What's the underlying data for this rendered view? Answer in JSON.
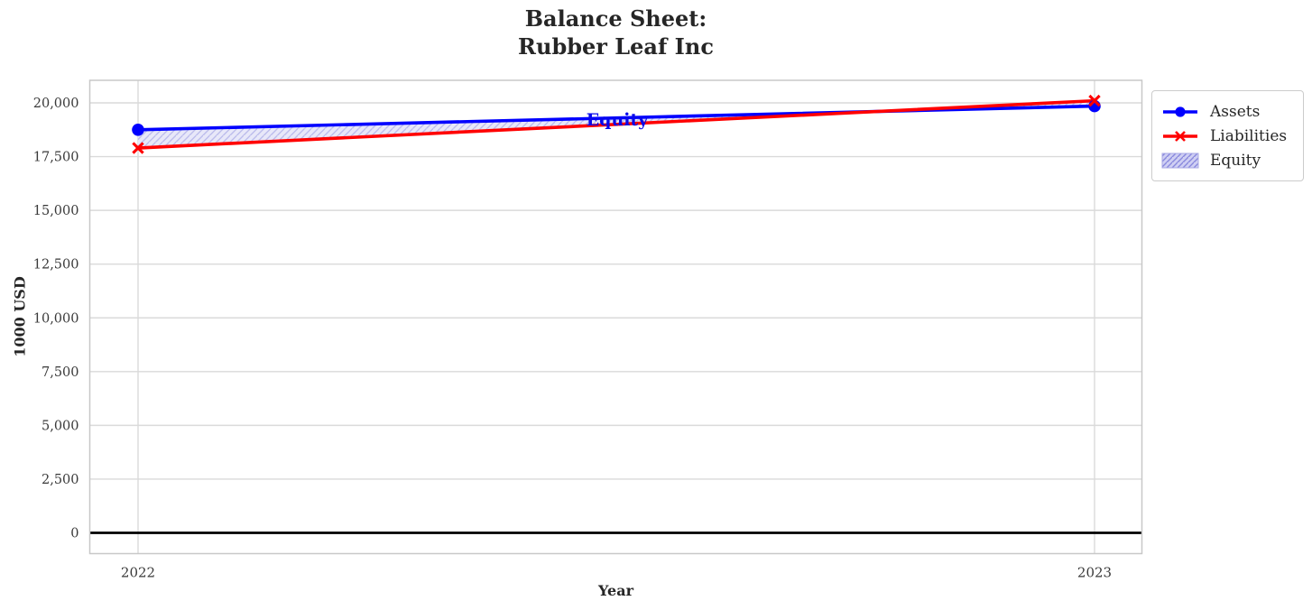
{
  "figure": {
    "title_line1": "Balance Sheet:",
    "title_line2": "Rubber Leaf Inc",
    "xlabel": "Year",
    "ylabel": "1000 USD"
  },
  "annotation": {
    "text": "Equity",
    "color": "#0808ec"
  },
  "legend": {
    "items": [
      {
        "label": "Assets",
        "marker": "line-with-circle",
        "color": "#0000ff"
      },
      {
        "label": "Liabilities",
        "marker": "line-with-x",
        "color": "#ff0000"
      },
      {
        "label": "Equity",
        "marker": "hatched-patch",
        "fill": "#cfcff3",
        "hatch": "#8888dd"
      }
    ]
  },
  "chart_data": {
    "type": "line",
    "title": "Balance Sheet:\nRubber Leaf Inc",
    "xlabel": "Year",
    "ylabel": "1000 USD",
    "x": [
      2022,
      2023
    ],
    "x_tick_labels": [
      "2022",
      "2023"
    ],
    "series": [
      {
        "name": "Assets",
        "values": [
          18750,
          19850
        ],
        "color": "#0000ff",
        "marker": "circle",
        "line_width": 3.6
      },
      {
        "name": "Liabilities",
        "values": [
          17900,
          20100
        ],
        "color": "#ff0000",
        "marker": "x",
        "line_width": 3.6
      }
    ],
    "fill_between": {
      "name": "Equity",
      "between": [
        "Assets",
        "Liabilities"
      ],
      "equity_values": [
        850,
        -250
      ],
      "face_color": "#e8e8f9",
      "hatch_color": "#bcbcec",
      "hatch_style": "//"
    },
    "y_ticks": [
      0,
      2500,
      5000,
      7500,
      10000,
      12500,
      15000,
      17500,
      20000
    ],
    "y_tick_labels": [
      "0",
      "2,500",
      "5,000",
      "7,500",
      "10,000",
      "12,500",
      "15,000",
      "17,500",
      "20,000"
    ],
    "ylim": [
      -1000,
      21100
    ],
    "xlim": [
      2021.95,
      2023.05
    ],
    "grid": true,
    "zero_line": {
      "present": true,
      "color": "#000000"
    },
    "legend_position": "upper-right-outside",
    "colors": {
      "grid": "#dadada",
      "frame": "#c8c8c8",
      "tick_text": "#3a3a3a",
      "title_text": "#262626"
    }
  }
}
